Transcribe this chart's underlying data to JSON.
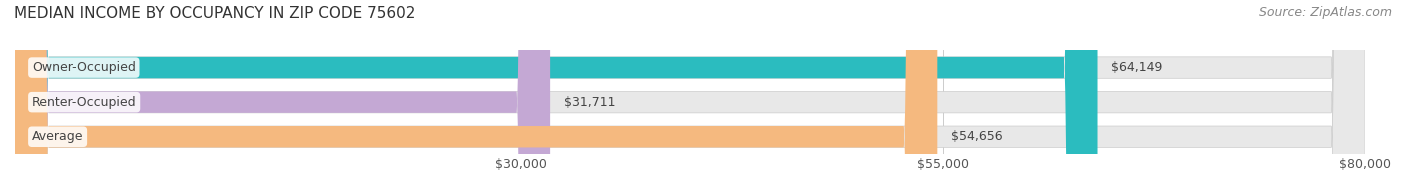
{
  "title": "MEDIAN INCOME BY OCCUPANCY IN ZIP CODE 75602",
  "source": "Source: ZipAtlas.com",
  "categories": [
    "Owner-Occupied",
    "Renter-Occupied",
    "Average"
  ],
  "values": [
    64149,
    31711,
    54656
  ],
  "bar_colors": [
    "#2bbcbf",
    "#c4a8d4",
    "#f5b97f"
  ],
  "bar_labels": [
    "$64,149",
    "$31,711",
    "$54,656"
  ],
  "xmin": 0,
  "xmax": 80000,
  "xticks": [
    30000,
    55000,
    80000
  ],
  "xtick_labels": [
    "$30,000",
    "$55,000",
    "$80,000"
  ],
  "background_color": "#f5f5f5",
  "bar_background_color": "#e8e8e8",
  "title_fontsize": 11,
  "source_fontsize": 9,
  "label_fontsize": 9,
  "tick_fontsize": 9
}
